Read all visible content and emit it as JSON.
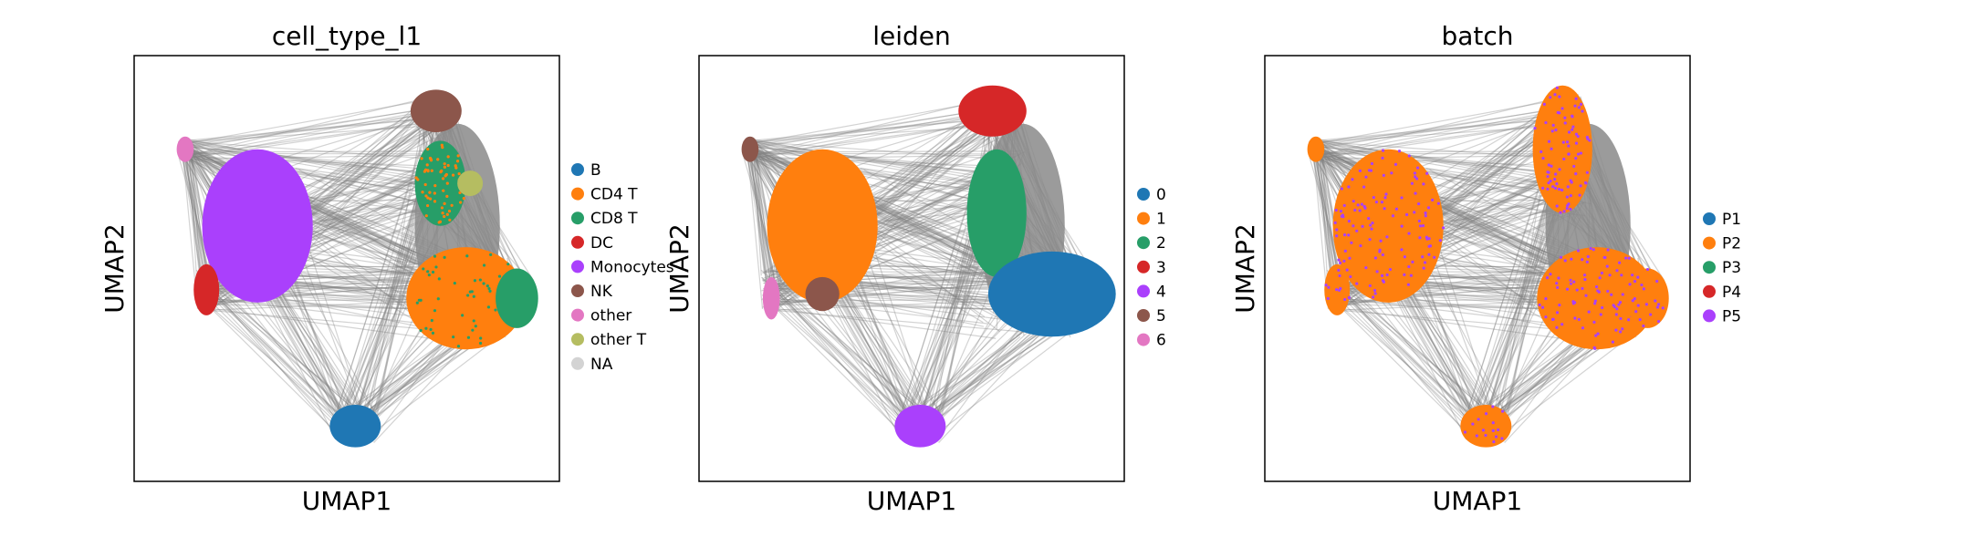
{
  "chart_data": [
    {
      "type": "scatter",
      "title": "cell_type_l1",
      "xlabel": "UMAP1",
      "ylabel": "UMAP2",
      "grid": false,
      "legend_placement": "right",
      "edges_color": "#808080",
      "series": [
        {
          "name": "B",
          "color": "#1f77b4"
        },
        {
          "name": "CD4 T",
          "color": "#ff7f0e"
        },
        {
          "name": "CD8 T",
          "color": "#279e68"
        },
        {
          "name": "DC",
          "color": "#d62728"
        },
        {
          "name": "Monocytes",
          "color": "#aa40fc"
        },
        {
          "name": "NK",
          "color": "#8c564b"
        },
        {
          "name": "other",
          "color": "#e377c2"
        },
        {
          "name": "other T",
          "color": "#b5bd61"
        },
        {
          "name": "NA",
          "color": "#d3d3d3"
        }
      ]
    },
    {
      "type": "scatter",
      "title": "leiden",
      "xlabel": "UMAP1",
      "ylabel": "UMAP2",
      "grid": false,
      "legend_placement": "right",
      "edges_color": "#808080",
      "series": [
        {
          "name": "0",
          "color": "#1f77b4"
        },
        {
          "name": "1",
          "color": "#ff7f0e"
        },
        {
          "name": "2",
          "color": "#279e68"
        },
        {
          "name": "3",
          "color": "#d62728"
        },
        {
          "name": "4",
          "color": "#aa40fc"
        },
        {
          "name": "5",
          "color": "#8c564b"
        },
        {
          "name": "6",
          "color": "#e377c2"
        }
      ]
    },
    {
      "type": "scatter",
      "title": "batch",
      "xlabel": "UMAP1",
      "ylabel": "UMAP2",
      "grid": false,
      "legend_placement": "right",
      "edges_color": "#808080",
      "series": [
        {
          "name": "P1",
          "color": "#1f77b4"
        },
        {
          "name": "P2",
          "color": "#ff7f0e"
        },
        {
          "name": "P3",
          "color": "#279e68"
        },
        {
          "name": "P4",
          "color": "#d62728"
        },
        {
          "name": "P5",
          "color": "#aa40fc"
        }
      ]
    }
  ]
}
